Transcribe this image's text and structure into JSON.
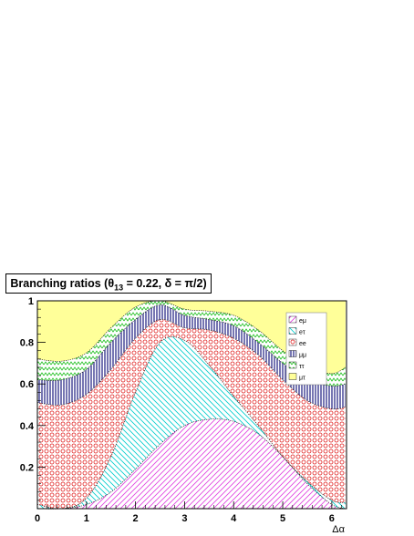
{
  "chart_data": {
    "type": "area",
    "stacked": true,
    "title_prefix": "Branching ratios (",
    "title_theta": "θ",
    "title_sub": "13",
    "title_suffix": " = 0.22, δ = π/2)",
    "xlabel": "Δα",
    "ylabel": "",
    "xlim": [
      0,
      6.3
    ],
    "ylim": [
      0,
      1
    ],
    "xticks": [
      "0",
      "1",
      "2",
      "3",
      "4",
      "5",
      "6"
    ],
    "yticks": [
      "0.2",
      "0.4",
      "0.6",
      "0.8",
      "1"
    ],
    "legend_position": "top-right",
    "x": [
      0,
      0.5,
      1.0,
      1.5,
      2.0,
      2.5,
      3.0,
      3.5,
      4.0,
      4.5,
      5.0,
      5.5,
      6.0,
      6.28
    ],
    "series": [
      {
        "name": "eμ",
        "color": "#e040e0",
        "pattern": "diag-right",
        "values": [
          0.0,
          0.0,
          0.02,
          0.08,
          0.19,
          0.31,
          0.4,
          0.43,
          0.42,
          0.36,
          0.25,
          0.12,
          0.02,
          0.0
        ]
      },
      {
        "name": "eτ",
        "color": "#00cccc",
        "pattern": "diag-left",
        "values": [
          0.02,
          0.0,
          0.03,
          0.17,
          0.37,
          0.49,
          0.41,
          0.26,
          0.12,
          0.04,
          0.0,
          0.01,
          0.02,
          0.03
        ]
      },
      {
        "name": "ee",
        "color": "#e02020",
        "pattern": "circles",
        "values": [
          0.49,
          0.5,
          0.5,
          0.42,
          0.26,
          0.11,
          0.06,
          0.17,
          0.28,
          0.34,
          0.37,
          0.39,
          0.44,
          0.46
        ]
      },
      {
        "name": "μμ",
        "color": "#1a1a80",
        "pattern": "vlines",
        "values": [
          0.11,
          0.12,
          0.12,
          0.13,
          0.09,
          0.07,
          0.06,
          0.05,
          0.06,
          0.06,
          0.08,
          0.1,
          0.11,
          0.11
        ]
      },
      {
        "name": "ττ",
        "color": "#20c020",
        "pattern": "zigzag",
        "values": [
          0.1,
          0.09,
          0.08,
          0.07,
          0.06,
          0.04,
          0.03,
          0.04,
          0.05,
          0.06,
          0.06,
          0.06,
          0.06,
          0.08
        ]
      },
      {
        "name": "μτ",
        "color": "#ffff99",
        "pattern": "solid",
        "values": [
          0.28,
          0.29,
          0.25,
          0.13,
          0.04,
          0.02,
          0.04,
          0.05,
          0.07,
          0.14,
          0.24,
          0.32,
          0.35,
          0.32
        ]
      }
    ]
  }
}
